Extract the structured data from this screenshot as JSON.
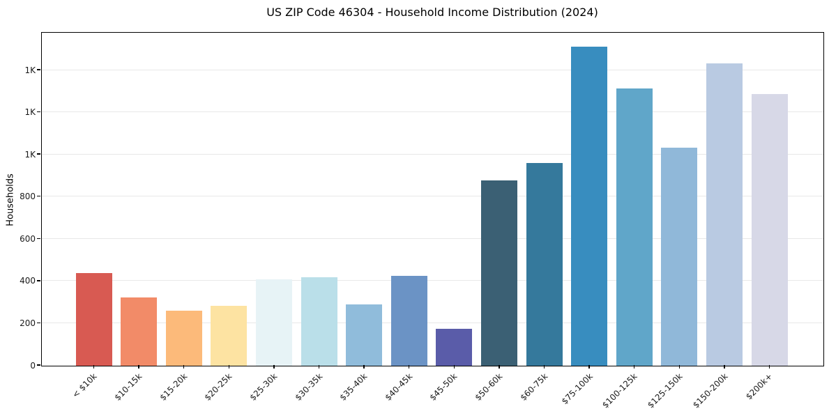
{
  "page": {
    "background": "#ffffff"
  },
  "chart_data": {
    "type": "bar",
    "title": "US ZIP Code 46304 - Household Income Distribution (2024)",
    "xlabel": "",
    "ylabel": "Households",
    "categories": [
      "< $10k",
      "$10-15k",
      "$15-20k",
      "$20-25k",
      "$25-30k",
      "$30-35k",
      "$35-40k",
      "$40-45k",
      "$45-50k",
      "$50-60k",
      "$60-75k",
      "$75-100k",
      "$100-125k",
      "$125-150k",
      "$150-200k",
      "$200k+"
    ],
    "values": [
      438,
      325,
      262,
      284,
      410,
      419,
      290,
      427,
      174,
      878,
      960,
      1512,
      1315,
      1032,
      1433,
      1289
    ],
    "bar_colors": [
      "#d85a52",
      "#f28b68",
      "#fcba7a",
      "#fde3a2",
      "#e7f3f6",
      "#badfe9",
      "#90bcdb",
      "#6b93c5",
      "#5a5ca9",
      "#3b6074",
      "#35799c",
      "#388dbf",
      "#60a6c9",
      "#90b8d9",
      "#b9cae2",
      "#d7d8e7"
    ],
    "ylim": [
      0,
      1575
    ],
    "yticks": [
      {
        "value": 0,
        "label": "0"
      },
      {
        "value": 200,
        "label": "200"
      },
      {
        "value": 400,
        "label": "400"
      },
      {
        "value": 600,
        "label": "600"
      },
      {
        "value": 800,
        "label": "800"
      },
      {
        "value": 1000,
        "label": "1K"
      },
      {
        "value": 1200,
        "label": "1K"
      },
      {
        "value": 1400,
        "label": "1K"
      }
    ],
    "grid": "horizontal",
    "legend": "none",
    "gridline_color": "#e8e8e8",
    "axis_color": "#000000",
    "text_color": "#1a1a1a",
    "background": "#ffffff"
  }
}
